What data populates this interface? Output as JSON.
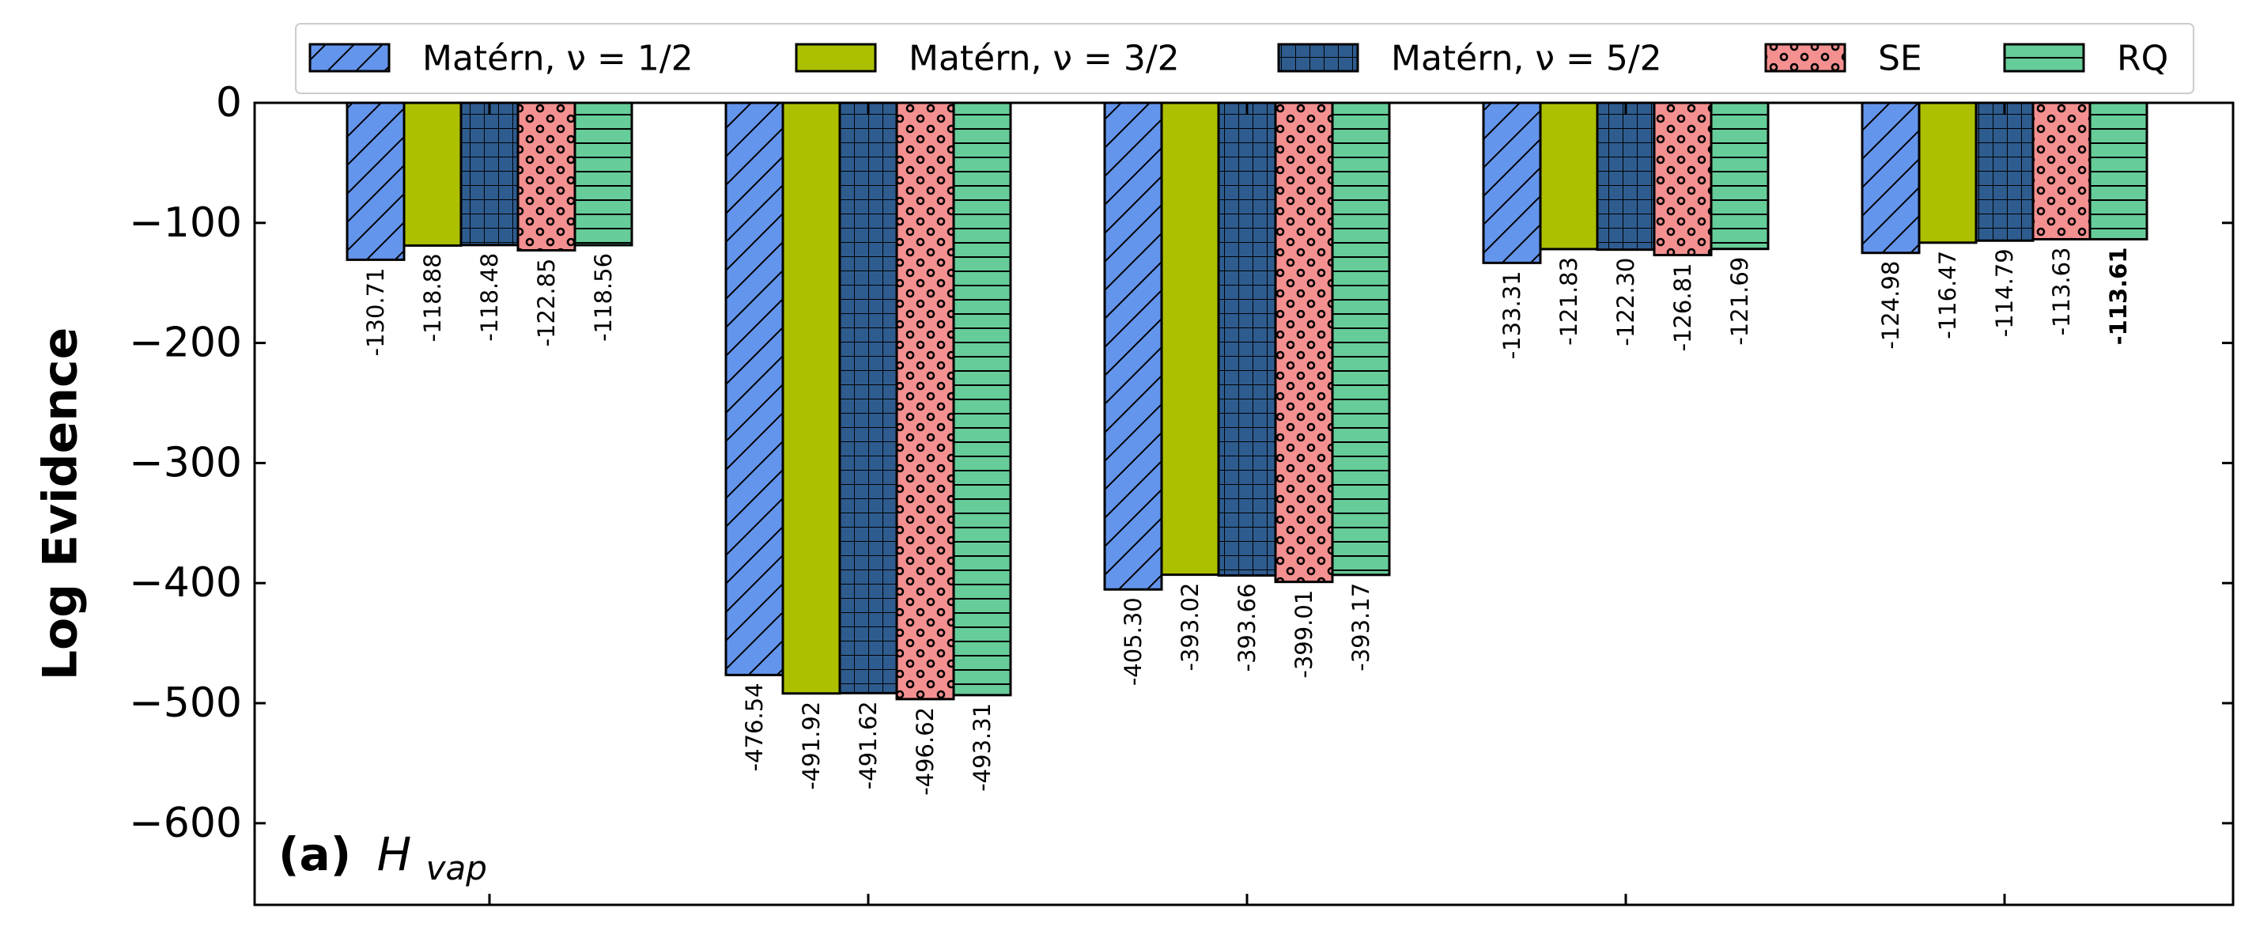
{
  "chart_data": {
    "type": "bar",
    "title": "",
    "xlabel": "",
    "ylabel": "Log Evidence",
    "annotation_prefix": "(a)",
    "annotation_symbol": "H",
    "annotation_subscript": "vap",
    "categories": [
      "",
      "",
      "",
      "",
      ""
    ],
    "ylim": [
      -670,
      0
    ],
    "yticks": [
      0,
      -100,
      -200,
      -300,
      -400,
      -500,
      -600
    ],
    "ytick_labels": [
      "0",
      "−100",
      "−200",
      "−300",
      "−400",
      "−500",
      "−600"
    ],
    "grid": false,
    "legend_position": "top",
    "series": [
      {
        "name": "Matérn, ν = 1/2",
        "color": "#6495ED",
        "pattern": "diagonal-hatch",
        "values": [
          -130.71,
          -476.54,
          -405.3,
          -133.31,
          -124.98
        ],
        "labels": [
          "-130.71",
          "-476.54",
          "-405.30",
          "-133.31",
          "-124.98"
        ]
      },
      {
        "name": "Matérn, ν = 3/2",
        "color": "#ADC000",
        "pattern": "solid",
        "values": [
          -118.88,
          -491.92,
          -393.02,
          -121.83,
          -116.47
        ],
        "labels": [
          "-118.88",
          "-491.92",
          "-393.02",
          "-121.83",
          "-116.47"
        ]
      },
      {
        "name": "Matérn, ν = 5/2",
        "color": "#2F5C8F",
        "pattern": "grid",
        "values": [
          -118.48,
          -491.62,
          -393.66,
          -122.3,
          -114.79
        ],
        "labels": [
          "-118.48",
          "-491.62",
          "-393.66",
          "-122.30",
          "-114.79"
        ]
      },
      {
        "name": "SE",
        "color": "#F49090",
        "pattern": "dots",
        "values": [
          -122.85,
          -496.62,
          -399.01,
          -126.81,
          -113.63
        ],
        "labels": [
          "-122.85",
          "-496.62",
          "-399.01",
          "-126.81",
          "-113.63"
        ]
      },
      {
        "name": "RQ",
        "color": "#66CC99",
        "pattern": "horizontal-lines",
        "values": [
          -118.56,
          -493.31,
          -393.17,
          -121.69,
          -113.61
        ],
        "labels": [
          "-118.56",
          "-493.31",
          "-393.17",
          "-121.69",
          "-113.61"
        ]
      }
    ],
    "best": {
      "series": 4,
      "category": 4
    }
  }
}
